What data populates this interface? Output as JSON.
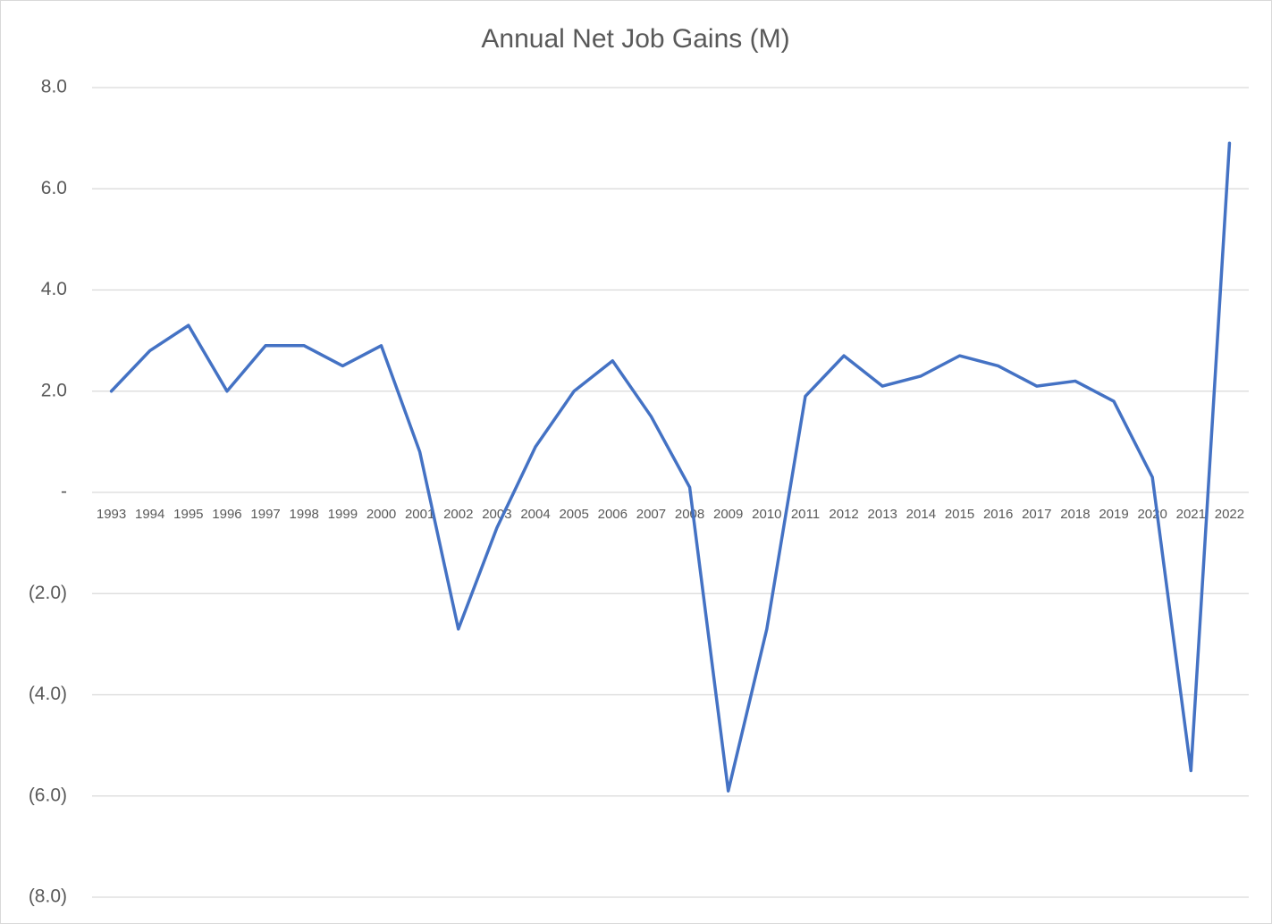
{
  "chart_data": {
    "type": "line",
    "title": "Annual Net Job Gains (M)",
    "categories": [
      "1993",
      "1994",
      "1995",
      "1996",
      "1997",
      "1998",
      "1999",
      "2000",
      "2001",
      "2002",
      "2003",
      "2004",
      "2005",
      "2006",
      "2007",
      "2008",
      "2009",
      "2010",
      "2011",
      "2012",
      "2013",
      "2014",
      "2015",
      "2016",
      "2017",
      "2018",
      "2019",
      "2020",
      "2021",
      "2022"
    ],
    "series": [
      {
        "name": "Annual Net Job Gains",
        "color": "#4472c4",
        "values": [
          2.0,
          2.8,
          3.3,
          2.0,
          2.9,
          2.9,
          2.5,
          2.9,
          0.8,
          -2.7,
          -0.7,
          0.9,
          2.0,
          2.6,
          1.5,
          0.1,
          -5.9,
          -2.7,
          1.9,
          2.7,
          2.1,
          2.3,
          2.7,
          2.5,
          2.1,
          2.2,
          1.8,
          0.3,
          -5.5,
          6.9
        ]
      }
    ],
    "ylim": [
      -8,
      8
    ],
    "yticks": [
      {
        "value": -8,
        "label": "(8.0)"
      },
      {
        "value": -6,
        "label": "(6.0)"
      },
      {
        "value": -4,
        "label": "(4.0)"
      },
      {
        "value": -2,
        "label": "(2.0)"
      },
      {
        "value": 0,
        "label": "-"
      },
      {
        "value": 2,
        "label": "2.0"
      },
      {
        "value": 4,
        "label": "4.0"
      },
      {
        "value": 6,
        "label": "6.0"
      },
      {
        "value": 8,
        "label": "8.0"
      }
    ],
    "grid": true
  }
}
